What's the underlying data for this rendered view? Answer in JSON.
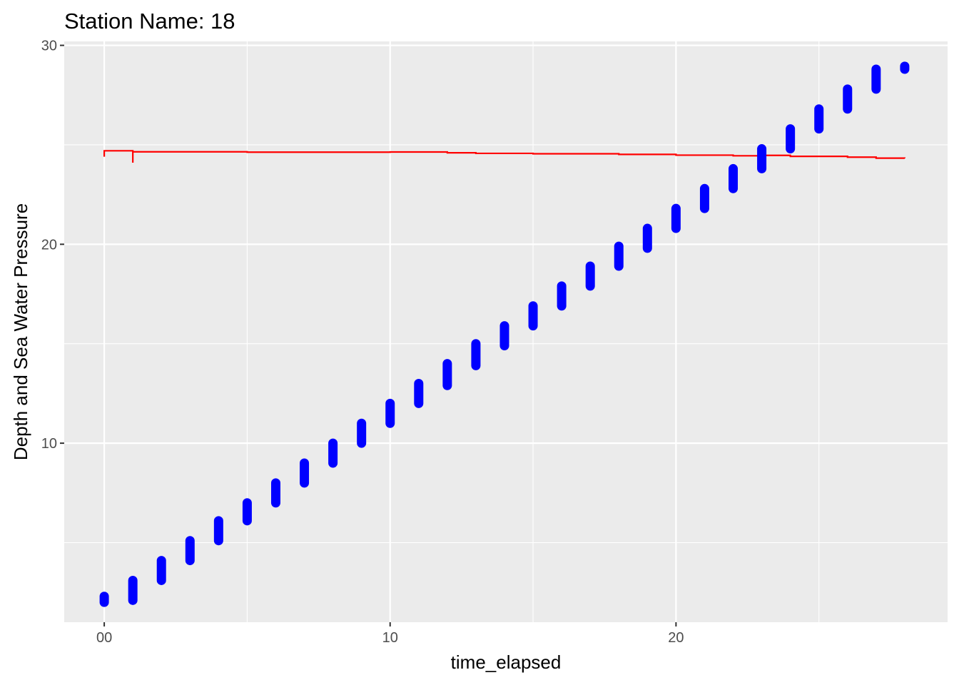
{
  "chart_data": {
    "type": "scatter",
    "title": "Station Name: 18",
    "xlabel": "time_elapsed",
    "ylabel": "Depth and Sea Water Pressure",
    "xlim": [
      -1.4,
      29.5
    ],
    "ylim": [
      1.0,
      30.2
    ],
    "x_ticks": [
      {
        "value": 0,
        "label": "00"
      },
      {
        "value": 10,
        "label": "10"
      },
      {
        "value": 20,
        "label": "20"
      }
    ],
    "y_ticks": [
      {
        "value": 10,
        "label": "10"
      },
      {
        "value": 20,
        "label": "20"
      },
      {
        "value": 30,
        "label": "30"
      }
    ],
    "x_minor": [
      5,
      15,
      25
    ],
    "y_minor": [
      5,
      15,
      25
    ],
    "grid": true,
    "legend": "none",
    "colors": {
      "panel": "#ebebeb",
      "grid": "#ffffff",
      "points": "#0000ff",
      "line": "#ff0000"
    },
    "series": [
      {
        "type": "scatter",
        "color": "#0000ff",
        "points": [
          {
            "x": 0,
            "y_min": 2.0,
            "y_max": 2.3
          },
          {
            "x": 1,
            "y_min": 2.1,
            "y_max": 3.1
          },
          {
            "x": 2,
            "y_min": 3.1,
            "y_max": 4.1
          },
          {
            "x": 3,
            "y_min": 4.1,
            "y_max": 5.1
          },
          {
            "x": 4,
            "y_min": 5.1,
            "y_max": 6.1
          },
          {
            "x": 5,
            "y_min": 6.1,
            "y_max": 7.0
          },
          {
            "x": 6,
            "y_min": 7.0,
            "y_max": 8.0
          },
          {
            "x": 7,
            "y_min": 8.0,
            "y_max": 9.0
          },
          {
            "x": 8,
            "y_min": 9.0,
            "y_max": 10.0
          },
          {
            "x": 9,
            "y_min": 10.0,
            "y_max": 11.0
          },
          {
            "x": 10,
            "y_min": 11.0,
            "y_max": 12.0
          },
          {
            "x": 11,
            "y_min": 12.0,
            "y_max": 13.0
          },
          {
            "x": 12,
            "y_min": 12.9,
            "y_max": 14.0
          },
          {
            "x": 13,
            "y_min": 13.9,
            "y_max": 15.0
          },
          {
            "x": 14,
            "y_min": 14.9,
            "y_max": 15.9
          },
          {
            "x": 15,
            "y_min": 15.9,
            "y_max": 16.9
          },
          {
            "x": 16,
            "y_min": 16.9,
            "y_max": 17.9
          },
          {
            "x": 17,
            "y_min": 17.9,
            "y_max": 18.9
          },
          {
            "x": 18,
            "y_min": 18.9,
            "y_max": 19.9
          },
          {
            "x": 19,
            "y_min": 19.8,
            "y_max": 20.8
          },
          {
            "x": 20,
            "y_min": 20.8,
            "y_max": 21.8
          },
          {
            "x": 21,
            "y_min": 21.8,
            "y_max": 22.8
          },
          {
            "x": 22,
            "y_min": 22.8,
            "y_max": 23.8
          },
          {
            "x": 23,
            "y_min": 23.8,
            "y_max": 24.8
          },
          {
            "x": 24,
            "y_min": 24.8,
            "y_max": 25.8
          },
          {
            "x": 25,
            "y_min": 25.8,
            "y_max": 26.8
          },
          {
            "x": 26,
            "y_min": 26.8,
            "y_max": 27.8
          },
          {
            "x": 27,
            "y_min": 27.8,
            "y_max": 28.8
          },
          {
            "x": 28,
            "y_min": 28.8,
            "y_max": 28.95
          }
        ]
      },
      {
        "type": "line",
        "color": "#ff0000",
        "points": [
          {
            "x": 0,
            "y": 24.4
          },
          {
            "x": 0,
            "y": 24.7
          },
          {
            "x": 1,
            "y": 24.5
          },
          {
            "x": 1,
            "y": 24.1
          },
          {
            "x": 1,
            "y": 24.65
          },
          {
            "x": 5,
            "y": 24.63
          },
          {
            "x": 10,
            "y": 24.64
          },
          {
            "x": 12,
            "y": 24.6
          },
          {
            "x": 13,
            "y": 24.57
          },
          {
            "x": 15,
            "y": 24.55
          },
          {
            "x": 18,
            "y": 24.52
          },
          {
            "x": 20,
            "y": 24.48
          },
          {
            "x": 22,
            "y": 24.45
          },
          {
            "x": 23,
            "y": 24.47
          },
          {
            "x": 24,
            "y": 24.42
          },
          {
            "x": 26,
            "y": 24.38
          },
          {
            "x": 27,
            "y": 24.33
          },
          {
            "x": 28,
            "y": 24.32
          }
        ]
      }
    ]
  }
}
